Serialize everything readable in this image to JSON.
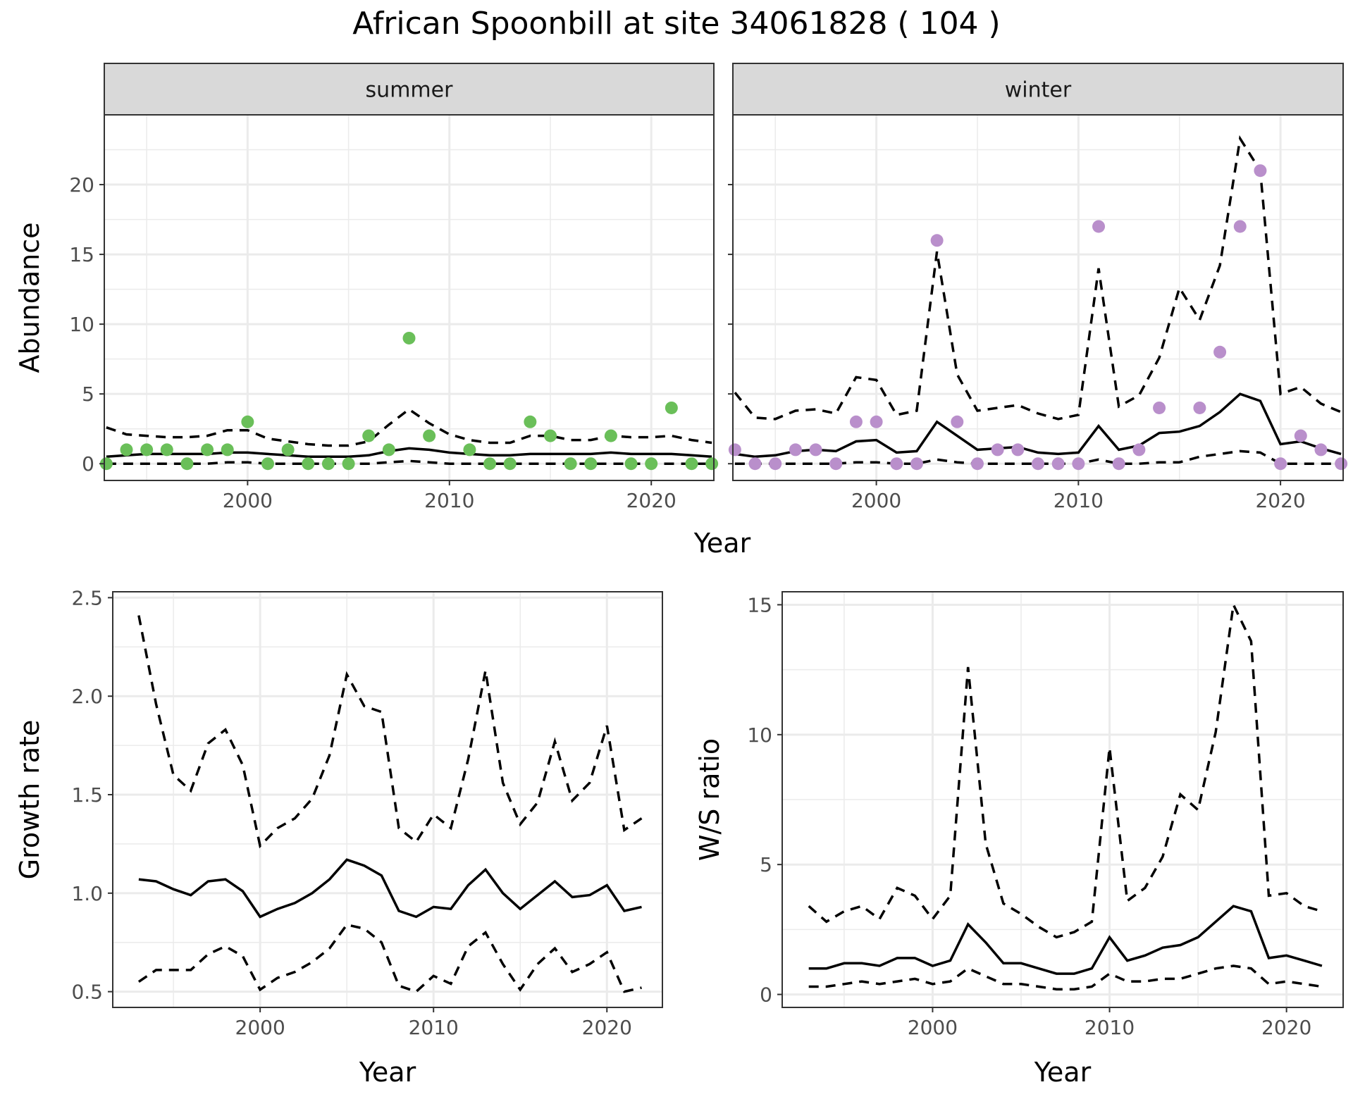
{
  "title": "African Spoonbill at site 34061828 ( 104 )",
  "colors": {
    "summer_points": "#6abf59",
    "winter_points": "#b98fcb",
    "lines": "#000000"
  },
  "chart_data": [
    {
      "type": "line",
      "panel": "summer",
      "strip": "summer",
      "xlabel": "",
      "ylabel": "Abundance",
      "xlim": [
        1992.9,
        2023.1
      ],
      "ylim": [
        -1.2,
        25
      ],
      "xticks": [
        2000,
        2010,
        2020
      ],
      "yticks": [
        0,
        5,
        10,
        15,
        20
      ],
      "x": [
        1993,
        1994,
        1995,
        1996,
        1997,
        1998,
        1999,
        2000,
        2001,
        2002,
        2003,
        2004,
        2005,
        2006,
        2007,
        2008,
        2009,
        2010,
        2011,
        2012,
        2013,
        2014,
        2015,
        2016,
        2017,
        2018,
        2019,
        2020,
        2021,
        2022,
        2023
      ],
      "points": [
        0,
        1,
        1,
        1,
        0,
        1,
        1,
        3,
        0,
        1,
        0,
        0,
        0,
        2,
        1,
        9,
        2,
        null,
        1,
        0,
        0,
        3,
        2,
        0,
        0,
        2,
        0,
        0,
        4,
        0,
        0
      ],
      "series": [
        {
          "role": "mean",
          "values": [
            0.5,
            0.6,
            0.7,
            0.7,
            0.7,
            0.7,
            0.8,
            0.8,
            0.7,
            0.6,
            0.5,
            0.5,
            0.5,
            0.6,
            0.9,
            1.1,
            1.0,
            0.8,
            0.7,
            0.6,
            0.6,
            0.7,
            0.7,
            0.7,
            0.7,
            0.8,
            0.7,
            0.7,
            0.7,
            0.6,
            0.5
          ]
        },
        {
          "role": "upper",
          "values": [
            2.6,
            2.1,
            2.0,
            1.9,
            1.9,
            2.0,
            2.4,
            2.4,
            1.8,
            1.6,
            1.4,
            1.3,
            1.3,
            1.6,
            2.8,
            3.9,
            2.9,
            2.1,
            1.7,
            1.5,
            1.5,
            2.0,
            2.0,
            1.7,
            1.7,
            2.0,
            1.9,
            1.9,
            2.0,
            1.7,
            1.5
          ]
        },
        {
          "role": "lower",
          "values": [
            0,
            0,
            0,
            0,
            0,
            0,
            0.1,
            0.1,
            0,
            0,
            0,
            0,
            0,
            0,
            0.1,
            0.2,
            0.1,
            0,
            0,
            0,
            0,
            0,
            0,
            0,
            0,
            0,
            0,
            0,
            0,
            0,
            0
          ]
        }
      ]
    },
    {
      "type": "line",
      "panel": "winter",
      "strip": "winter",
      "xlabel": "",
      "ylabel": "",
      "xlim": [
        1992.9,
        2023.1
      ],
      "ylim": [
        -1.2,
        25
      ],
      "xticks": [
        2000,
        2010,
        2020
      ],
      "yticks": [
        0,
        5,
        10,
        15,
        20
      ],
      "x": [
        1993,
        1994,
        1995,
        1996,
        1997,
        1998,
        1999,
        2000,
        2001,
        2002,
        2003,
        2004,
        2005,
        2006,
        2007,
        2008,
        2009,
        2010,
        2011,
        2012,
        2013,
        2014,
        2015,
        2016,
        2017,
        2018,
        2019,
        2020,
        2021,
        2022,
        2023
      ],
      "points": [
        1,
        0,
        0,
        1,
        1,
        0,
        3,
        3,
        0,
        0,
        16,
        3,
        0,
        1,
        1,
        0,
        0,
        0,
        17,
        0,
        1,
        4,
        null,
        4,
        8,
        17,
        21,
        0,
        2,
        1,
        0
      ],
      "series": [
        {
          "role": "mean",
          "values": [
            0.7,
            0.5,
            0.6,
            0.9,
            1.0,
            0.9,
            1.6,
            1.7,
            0.8,
            0.9,
            3.0,
            2.0,
            1.0,
            1.1,
            1.2,
            0.8,
            0.7,
            0.8,
            2.7,
            1.0,
            1.3,
            2.2,
            2.3,
            2.7,
            3.7,
            5.0,
            4.5,
            1.4,
            1.6,
            1.1,
            0.7
          ]
        },
        {
          "role": "upper",
          "values": [
            5.1,
            3.3,
            3.2,
            3.8,
            3.9,
            3.6,
            6.2,
            6.0,
            3.5,
            3.8,
            15.2,
            6.4,
            3.8,
            4.0,
            4.2,
            3.6,
            3.2,
            3.5,
            14.0,
            4.1,
            4.9,
            7.6,
            12.6,
            10.3,
            14.2,
            23.3,
            21.0,
            5.0,
            5.5,
            4.3,
            3.7
          ]
        },
        {
          "role": "lower",
          "values": [
            0,
            0,
            0,
            0,
            0,
            0,
            0.1,
            0.1,
            0,
            0,
            0.3,
            0.1,
            0,
            0,
            0,
            0,
            0,
            0,
            0.3,
            0,
            0,
            0.1,
            0.1,
            0.5,
            0.7,
            0.9,
            0.8,
            0,
            0,
            0,
            0
          ]
        }
      ]
    },
    {
      "type": "line",
      "panel": "growth",
      "xlabel": "Year",
      "ylabel": "Growth rate",
      "xlim": [
        1991.5,
        2023.2
      ],
      "ylim": [
        0.42,
        2.53
      ],
      "xticks": [
        2000,
        2010,
        2020
      ],
      "yticks": [
        0.5,
        1.0,
        1.5,
        2.0,
        2.5
      ],
      "ytick_labels": [
        "0.5",
        "1.0",
        "1.5",
        "2.0",
        "2.5"
      ],
      "x": [
        1993,
        1994,
        1995,
        1996,
        1997,
        1998,
        1999,
        2000,
        2001,
        2002,
        2003,
        2004,
        2005,
        2006,
        2007,
        2008,
        2009,
        2010,
        2011,
        2012,
        2013,
        2014,
        2015,
        2016,
        2017,
        2018,
        2019,
        2020,
        2021,
        2022
      ],
      "series": [
        {
          "role": "mean",
          "values": [
            1.07,
            1.06,
            1.02,
            0.99,
            1.06,
            1.07,
            1.01,
            0.88,
            0.92,
            0.95,
            1.0,
            1.07,
            1.17,
            1.14,
            1.09,
            0.91,
            0.88,
            0.93,
            0.92,
            1.04,
            1.12,
            1.0,
            0.92,
            0.99,
            1.06,
            0.98,
            0.99,
            1.04,
            0.91,
            0.93
          ]
        },
        {
          "role": "upper",
          "values": [
            2.41,
            1.96,
            1.6,
            1.52,
            1.76,
            1.83,
            1.65,
            1.24,
            1.33,
            1.38,
            1.48,
            1.7,
            2.11,
            1.95,
            1.92,
            1.33,
            1.26,
            1.4,
            1.33,
            1.68,
            2.13,
            1.56,
            1.35,
            1.46,
            1.77,
            1.47,
            1.56,
            1.85,
            1.32,
            1.38
          ]
        },
        {
          "role": "lower",
          "values": [
            0.55,
            0.61,
            0.61,
            0.61,
            0.69,
            0.73,
            0.68,
            0.51,
            0.57,
            0.6,
            0.65,
            0.72,
            0.84,
            0.82,
            0.75,
            0.53,
            0.5,
            0.58,
            0.54,
            0.73,
            0.8,
            0.64,
            0.51,
            0.64,
            0.72,
            0.6,
            0.64,
            0.7,
            0.5,
            0.52
          ]
        }
      ]
    },
    {
      "type": "line",
      "panel": "ws_ratio",
      "xlabel": "Year",
      "ylabel": "W/S ratio",
      "xlim": [
        1991.5,
        2023.2
      ],
      "ylim": [
        -0.5,
        15.5
      ],
      "xticks": [
        2000,
        2010,
        2020
      ],
      "yticks": [
        0,
        5,
        10,
        15
      ],
      "x": [
        1993,
        1994,
        1995,
        1996,
        1997,
        1998,
        1999,
        2000,
        2001,
        2002,
        2003,
        2004,
        2005,
        2006,
        2007,
        2008,
        2009,
        2010,
        2011,
        2012,
        2013,
        2014,
        2015,
        2016,
        2017,
        2018,
        2019,
        2020,
        2021,
        2022
      ],
      "series": [
        {
          "role": "mean",
          "values": [
            1.0,
            1.0,
            1.2,
            1.2,
            1.1,
            1.4,
            1.4,
            1.1,
            1.3,
            2.7,
            2.0,
            1.2,
            1.2,
            1.0,
            0.8,
            0.8,
            1.0,
            2.2,
            1.3,
            1.5,
            1.8,
            1.9,
            2.2,
            2.8,
            3.4,
            3.2,
            1.4,
            1.5,
            1.3,
            1.1
          ]
        },
        {
          "role": "upper",
          "values": [
            3.4,
            2.8,
            3.2,
            3.4,
            2.9,
            4.1,
            3.8,
            2.9,
            3.8,
            12.6,
            5.8,
            3.5,
            3.1,
            2.6,
            2.2,
            2.4,
            2.8,
            9.5,
            3.6,
            4.1,
            5.3,
            7.7,
            7.1,
            10.1,
            15.0,
            13.6,
            3.8,
            3.9,
            3.4,
            3.2
          ]
        },
        {
          "role": "lower",
          "values": [
            0.3,
            0.3,
            0.4,
            0.5,
            0.4,
            0.5,
            0.6,
            0.4,
            0.5,
            1.0,
            0.7,
            0.4,
            0.4,
            0.3,
            0.2,
            0.2,
            0.3,
            0.8,
            0.5,
            0.5,
            0.6,
            0.6,
            0.8,
            1.0,
            1.1,
            1.0,
            0.4,
            0.5,
            0.4,
            0.3
          ]
        }
      ]
    }
  ]
}
